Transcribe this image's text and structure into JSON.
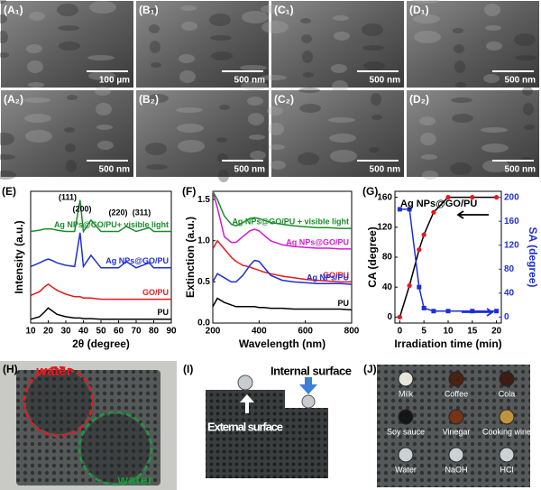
{
  "sem_panels": [
    {
      "label": "(A₁)",
      "scale_bar": "100 µm"
    },
    {
      "label": "(B₁)",
      "scale_bar": "500 nm"
    },
    {
      "label": "(C₁)",
      "scale_bar": "500 nm"
    },
    {
      "label": "(D₁)",
      "scale_bar": "500 nm"
    },
    {
      "label": "(A₂)",
      "scale_bar": "500 nm"
    },
    {
      "label": "(B₂)",
      "scale_bar": "500 nm"
    },
    {
      "label": "(C₂)",
      "scale_bar": "500 nm"
    },
    {
      "label": "(D₂)",
      "scale_bar": "500 nm"
    }
  ],
  "chart_data": [
    {
      "type": "line",
      "panel_label": "(E)",
      "xlabel": "2θ (degree)",
      "ylabel": "Intensity (a.u.)",
      "x": [
        10,
        15,
        18,
        20,
        22,
        25,
        30,
        35,
        38.1,
        40,
        44.3,
        50,
        60,
        64.4,
        70,
        77.4,
        80,
        90
      ],
      "xlim": [
        10,
        90
      ],
      "xticks": [
        10,
        20,
        30,
        40,
        50,
        60,
        70,
        80,
        90
      ],
      "ylim": [
        0,
        10.5
      ],
      "annotations": [
        "(111)",
        "(200)",
        "(220)",
        "(311)"
      ],
      "series": [
        {
          "name": "PU",
          "color": "#000000",
          "values": [
            0.3,
            0.5,
            0.9,
            1.2,
            1.0,
            0.7,
            0.5,
            0.4,
            0.4,
            0.35,
            0.35,
            0.3,
            0.3,
            0.3,
            0.3,
            0.3,
            0.3,
            0.3
          ]
        },
        {
          "name": "GO/PU",
          "color": "#e8171e",
          "values": [
            2.2,
            2.5,
            2.9,
            3.1,
            2.9,
            2.6,
            2.3,
            2.1,
            2.1,
            2.0,
            2.0,
            1.9,
            1.9,
            1.9,
            1.9,
            1.9,
            1.9,
            1.9
          ]
        },
        {
          "name": "Ag NPs@GO/PU",
          "color": "#1f2fd6",
          "values": [
            4.5,
            4.8,
            5.0,
            5.1,
            5.0,
            4.8,
            4.6,
            4.5,
            7.2,
            4.5,
            5.4,
            4.4,
            4.4,
            4.9,
            4.4,
            4.8,
            4.4,
            4.4
          ]
        },
        {
          "name": "Ag NPs@GO/PU+ visible light",
          "color": "#1a8c2a",
          "values": [
            7.3,
            7.4,
            7.5,
            7.5,
            7.5,
            7.4,
            7.3,
            7.3,
            9.8,
            7.3,
            8.2,
            7.3,
            7.3,
            7.7,
            7.3,
            7.6,
            7.3,
            7.3
          ]
        }
      ]
    },
    {
      "type": "line",
      "panel_label": "(F)",
      "xlabel": "Wavelength (nm)",
      "ylabel": "Extinction (a.u.)",
      "x": [
        200,
        220,
        250,
        280,
        300,
        330,
        360,
        380,
        400,
        420,
        450,
        500,
        550,
        600,
        650,
        700,
        750,
        800
      ],
      "xlim": [
        200,
        800
      ],
      "xticks": [
        200,
        400,
        600,
        800
      ],
      "ylim": [
        0,
        1.6
      ],
      "yticks": [
        {
          "value": 0,
          "label": "0.0"
        },
        {
          "value": 0.5,
          "label": "0.5"
        },
        {
          "value": 1,
          "label": "1.0"
        },
        {
          "value": 1.5,
          "label": "1.5"
        }
      ],
      "series": [
        {
          "name": "PU",
          "color": "#000000",
          "values": [
            0.2,
            0.3,
            0.25,
            0.22,
            0.2,
            0.2,
            0.2,
            0.2,
            0.19,
            0.19,
            0.18,
            0.18,
            0.17,
            0.17,
            0.17,
            0.17,
            0.17,
            0.16
          ]
        },
        {
          "name": "GO/PU",
          "color": "#e8171e",
          "values": [
            0.9,
            1.0,
            0.9,
            0.8,
            0.75,
            0.7,
            0.68,
            0.66,
            0.64,
            0.62,
            0.6,
            0.57,
            0.55,
            0.53,
            0.52,
            0.51,
            0.5,
            0.5
          ]
        },
        {
          "name": "Ag NPs/PU",
          "color": "#1f2fd6",
          "values": [
            0.5,
            0.6,
            0.55,
            0.5,
            0.5,
            0.58,
            0.7,
            0.76,
            0.75,
            0.68,
            0.58,
            0.52,
            0.5,
            0.49,
            0.48,
            0.48,
            0.48,
            0.47
          ]
        },
        {
          "name": "Ag NPs@GO/PU",
          "color": "#d21bd2",
          "values": [
            1.6,
            1.4,
            1.05,
            0.98,
            0.98,
            1.05,
            1.12,
            1.14,
            1.12,
            1.07,
            1.0,
            0.95,
            0.93,
            0.92,
            0.91,
            0.91,
            0.9,
            0.9
          ]
        },
        {
          "name": "Ag NPs@GO/PU + visible light",
          "color": "#1a8c2a",
          "values": [
            1.6,
            1.5,
            1.3,
            1.2,
            1.18,
            1.22,
            1.27,
            1.28,
            1.27,
            1.25,
            1.22,
            1.2,
            1.18,
            1.17,
            1.16,
            1.16,
            1.15,
            1.15
          ]
        }
      ]
    },
    {
      "type": "line",
      "panel_label": "(G)",
      "xlabel": "Irradiation time (min)",
      "ylabel": "CA (degree)",
      "y2label": "SA (degree)",
      "annotations": [
        "Ag NPs@GO/PU"
      ],
      "x": [
        0,
        2,
        4,
        5,
        7,
        10,
        15,
        20
      ],
      "xlim": [
        -1,
        21
      ],
      "xticks": [
        0,
        5,
        10,
        15,
        20
      ],
      "ylim": [
        -8,
        168
      ],
      "yticks": [
        0,
        40,
        80,
        120,
        160
      ],
      "y2lim": [
        -10,
        210
      ],
      "y2ticks": [
        0,
        40,
        80,
        120,
        160,
        200
      ],
      "series": [
        {
          "color": "#000000",
          "marker_color": "#e8171e",
          "values": [
            0,
            42,
            90,
            110,
            140,
            160,
            160,
            160
          ]
        },
        {
          "color": "#1f2fd6",
          "axis": "y2",
          "values": [
            180,
            180,
            50,
            15,
            10,
            10,
            10,
            10
          ]
        }
      ]
    }
  ],
  "photo_panels": [
    {
      "label": "(H)",
      "texts": [
        "water",
        "water"
      ]
    },
    {
      "label": "(I)",
      "texts": [
        "Internal surface",
        "External surface"
      ]
    },
    {
      "label": "(J)",
      "texts": [
        "Milk",
        "Coffee",
        "Cola",
        "Soy sauce",
        "Vinegar",
        "Cooking wine",
        "Water",
        "NaOH",
        "HCl"
      ]
    }
  ]
}
